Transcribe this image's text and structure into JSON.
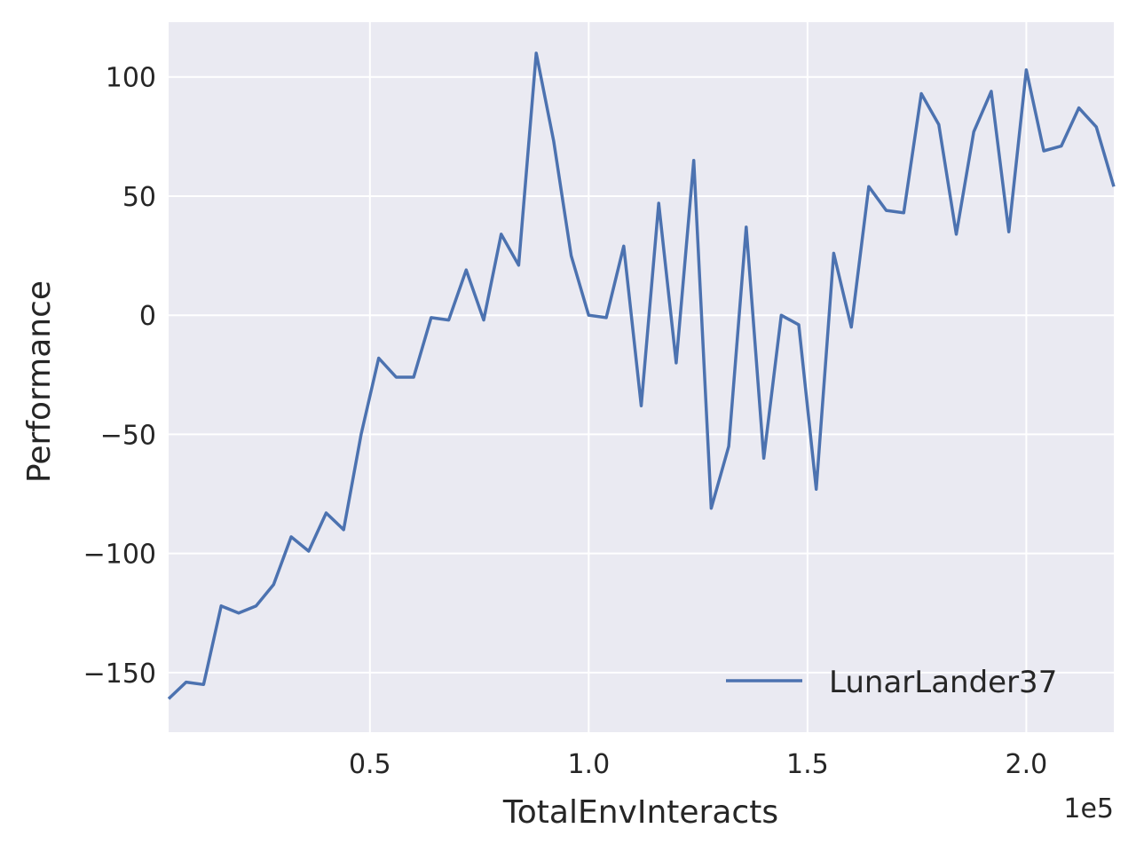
{
  "chart_data": {
    "type": "line",
    "xlabel": "TotalEnvInteracts",
    "ylabel": "Performance",
    "x_offset_label": "1e5",
    "xlim": [
      0.04,
      2.2
    ],
    "ylim": [
      -175,
      123
    ],
    "xticks": [
      0.5,
      1.0,
      1.5,
      2.0
    ],
    "xtick_labels": [
      "0.5",
      "1.0",
      "1.5",
      "2.0"
    ],
    "yticks": [
      100,
      50,
      0,
      -50,
      -100,
      -150
    ],
    "ytick_labels": [
      "100",
      "50",
      "0",
      "−50",
      "−100",
      "−150"
    ],
    "grid": true,
    "legend_position": "lower-right",
    "colors": {
      "background": "#eaeaf2",
      "grid": "#ffffff",
      "series": "#4c72b0"
    },
    "series": [
      {
        "name": "LunarLander37",
        "x": [
          0.04,
          0.08,
          0.12,
          0.16,
          0.2,
          0.24,
          0.28,
          0.32,
          0.36,
          0.4,
          0.44,
          0.48,
          0.52,
          0.56,
          0.6,
          0.64,
          0.68,
          0.72,
          0.76,
          0.8,
          0.84,
          0.88,
          0.92,
          0.96,
          1.0,
          1.04,
          1.08,
          1.12,
          1.16,
          1.2,
          1.24,
          1.28,
          1.32,
          1.36,
          1.4,
          1.44,
          1.48,
          1.52,
          1.56,
          1.6,
          1.64,
          1.68,
          1.72,
          1.76,
          1.8,
          1.84,
          1.88,
          1.92,
          1.96,
          2.0,
          2.04,
          2.08,
          2.12,
          2.16,
          2.2
        ],
        "y": [
          -161,
          -154,
          -155,
          -122,
          -125,
          -122,
          -113,
          -93,
          -99,
          -83,
          -90,
          -50,
          -18,
          -26,
          -26,
          -1,
          -2,
          19,
          -2,
          34,
          21,
          110,
          73,
          25,
          0,
          -1,
          29,
          -38,
          47,
          -20,
          65,
          -81,
          -55,
          37,
          -60,
          0,
          -4,
          -73,
          26,
          -5,
          54,
          44,
          43,
          93,
          80,
          34,
          77,
          94,
          35,
          103,
          69,
          71,
          87,
          79,
          54
        ]
      }
    ]
  }
}
